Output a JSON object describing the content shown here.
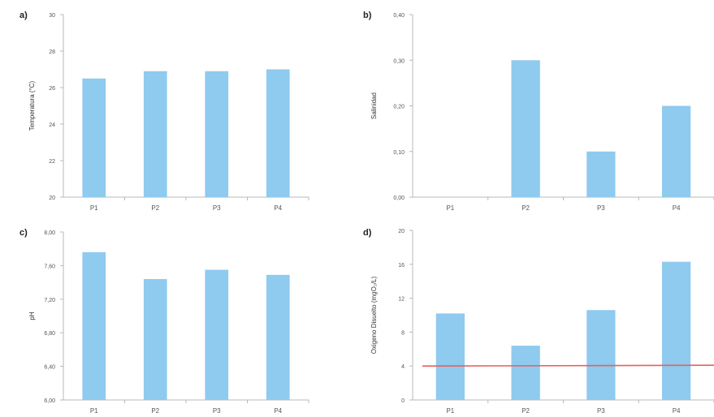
{
  "chart_data": [
    {
      "panel_label": "a)",
      "type": "bar",
      "categories": [
        "P1",
        "P2",
        "P3",
        "P4"
      ],
      "values": [
        26.5,
        26.9,
        26.9,
        27.0
      ],
      "ylabel": "Temperatura (°C)",
      "ylim": [
        20,
        30
      ],
      "yticks": [
        "20",
        "22",
        "24",
        "26",
        "28",
        "30"
      ],
      "grid": false,
      "bar_color": "#8fcaef"
    },
    {
      "panel_label": "b)",
      "type": "bar",
      "categories": [
        "P1",
        "P2",
        "P3",
        "P4"
      ],
      "values": [
        0,
        0.3,
        0.1,
        0.2
      ],
      "ylabel": "Salinidad",
      "ylim": [
        0,
        0.4
      ],
      "yticks": [
        "0,00",
        "0,10",
        "0,20",
        "0,30",
        "0,40"
      ],
      "grid": false,
      "bar_color": "#8fcaef"
    },
    {
      "panel_label": "c)",
      "type": "bar",
      "categories": [
        "P1",
        "P2",
        "P3",
        "P4"
      ],
      "values": [
        7.76,
        7.44,
        7.55,
        7.49
      ],
      "ylabel": "pH",
      "ylim": [
        6.0,
        8.0
      ],
      "yticks": [
        "6,00",
        "6,40",
        "6,80",
        "7,20",
        "7,60",
        "8,00"
      ],
      "grid": false,
      "bar_color": "#8fcaef"
    },
    {
      "panel_label": "d)",
      "type": "bar",
      "categories": [
        "P1",
        "P2",
        "P3",
        "P4"
      ],
      "values": [
        10.2,
        6.4,
        10.6,
        16.3
      ],
      "ylabel": "Oxigeno Disuelto (mgO₂/L)",
      "ylim": [
        0,
        20
      ],
      "yticks": [
        "0",
        "4",
        "8",
        "12",
        "16",
        "20"
      ],
      "grid": false,
      "bar_color": "#8fcaef",
      "reference_line": {
        "value": 4,
        "color": "#e8605a"
      }
    }
  ]
}
